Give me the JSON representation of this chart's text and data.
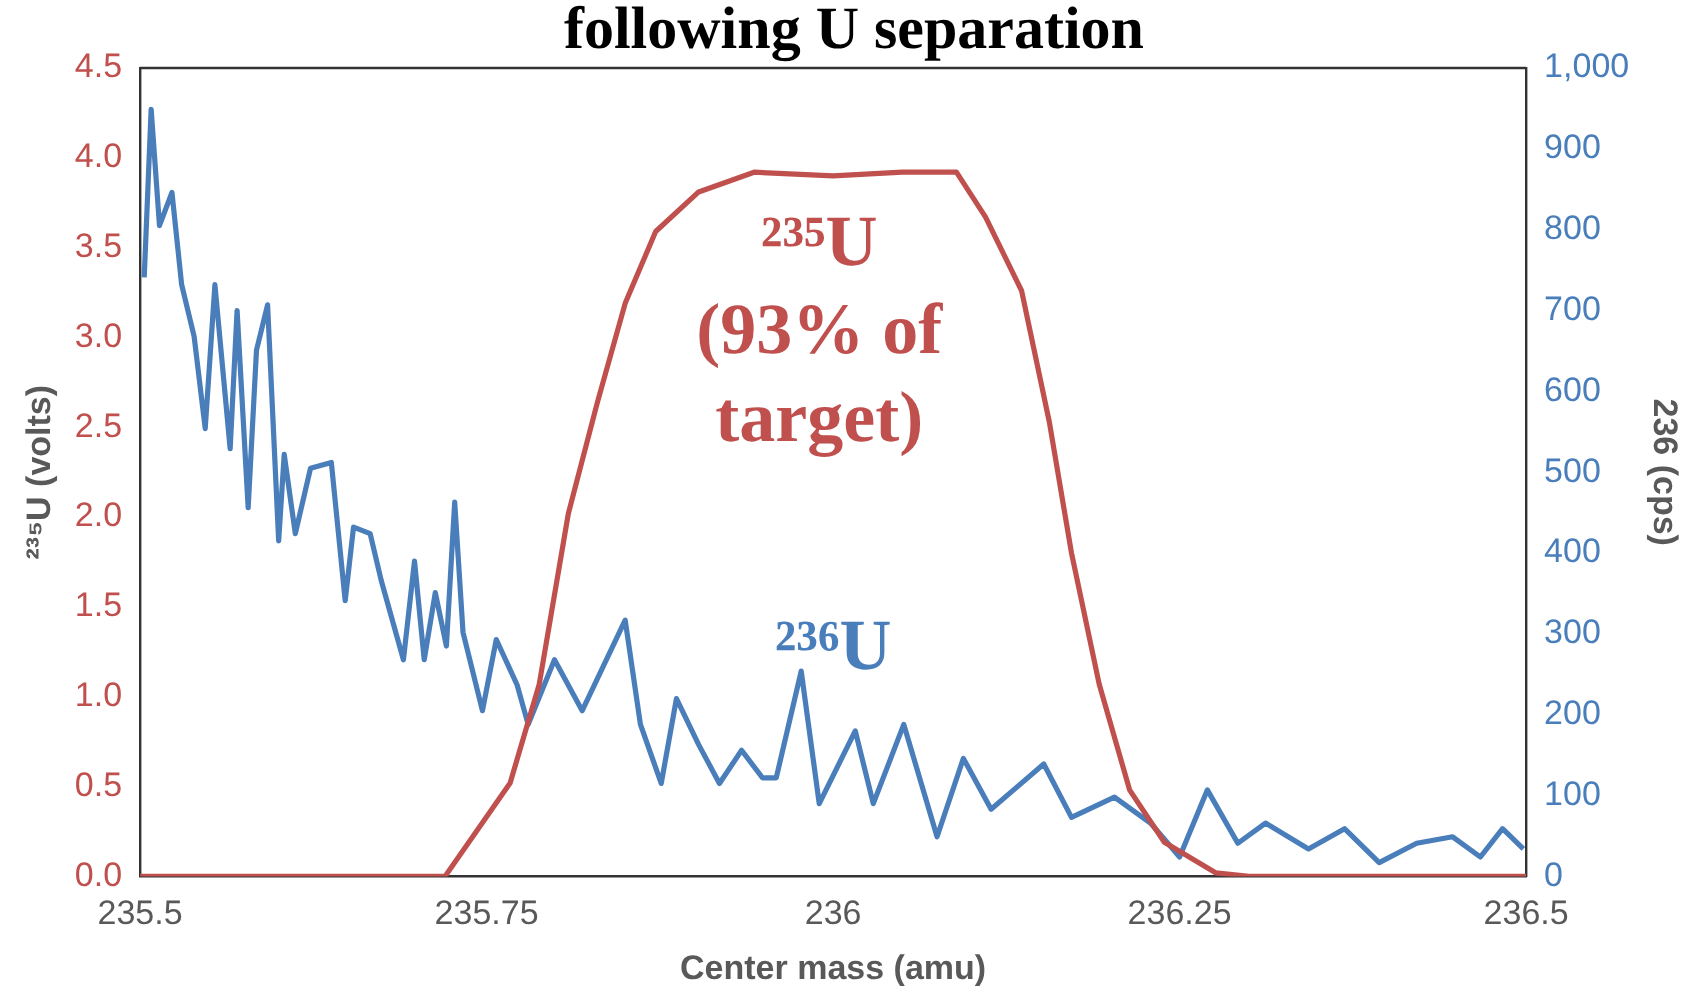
{
  "chart_data": {
    "type": "line",
    "title": "following U separation",
    "xlabel": "Center mass (amu)",
    "ylabel": "²³⁵U (volts)",
    "y2label": "236 (cps)",
    "xlim": [
      235.5,
      236.5
    ],
    "xticks": [
      235.5,
      235.75,
      236,
      236.25,
      236.5
    ],
    "ylim": [
      0,
      4.5
    ],
    "yticks": [
      {
        "value": 0,
        "label": "0.0"
      },
      {
        "value": 0.5,
        "label": "0.5"
      },
      {
        "value": 1,
        "label": "1.0"
      },
      {
        "value": 1.5,
        "label": "1.5"
      },
      {
        "value": 2,
        "label": "2.0"
      },
      {
        "value": 2.5,
        "label": "2.5"
      },
      {
        "value": 3,
        "label": "3.0"
      },
      {
        "value": 3.5,
        "label": "3.5"
      },
      {
        "value": 4,
        "label": "4.0"
      },
      {
        "value": 4.5,
        "label": "4.5"
      }
    ],
    "y2lim": [
      0,
      1000
    ],
    "y2ticks": [
      0,
      100,
      200,
      300,
      400,
      500,
      600,
      700,
      800,
      900,
      {
        "value": 1000,
        "label": "1,000"
      }
    ],
    "grid": false,
    "legend": false,
    "series": [
      {
        "name": "²³⁵U (93% of target)",
        "color": "#c0504d",
        "x": [
          235.5,
          235.72,
          235.767,
          235.788,
          235.809,
          235.83,
          235.85,
          235.872,
          235.903,
          235.943,
          236.0,
          236.05,
          236.089,
          236.11,
          236.136,
          236.156,
          236.172,
          236.192,
          236.214,
          236.239,
          236.276,
          236.3,
          236.5
        ],
        "values": [
          0,
          0,
          0.52,
          1.07,
          2.02,
          2.64,
          3.19,
          3.59,
          3.81,
          3.92,
          3.9,
          3.92,
          3.92,
          3.67,
          3.26,
          2.53,
          1.8,
          1.07,
          0.48,
          0.19,
          0.02,
          0,
          0
        ]
      },
      {
        "name": "²³⁶U",
        "color": "#4a7ebb",
        "axis": "y2",
        "x": [
          235.503,
          235.508,
          235.514,
          235.523,
          235.53,
          235.539,
          235.547,
          235.554,
          235.565,
          235.57,
          235.578,
          235.584,
          235.592,
          235.6,
          235.604,
          235.612,
          235.623,
          235.638,
          235.648,
          235.654,
          235.666,
          235.674,
          235.69,
          235.698,
          235.705,
          235.713,
          235.721,
          235.727,
          235.733,
          235.747,
          235.757,
          235.772,
          235.78,
          235.799,
          235.819,
          235.85,
          235.861,
          235.876,
          235.887,
          235.903,
          235.918,
          235.934,
          235.949,
          235.959,
          235.977,
          235.99,
          236.016,
          236.029,
          236.051,
          236.075,
          236.094,
          236.114,
          236.152,
          236.172,
          236.203,
          236.229,
          236.25,
          236.27,
          236.292,
          236.312,
          236.343,
          236.369,
          236.394,
          236.421,
          236.447,
          236.467,
          236.483,
          236.498
        ],
        "values": [
          741,
          949,
          805,
          846,
          732,
          668,
          554,
          732,
          529,
          700,
          456,
          651,
          707,
          415,
          522,
          424,
          505,
          512,
          341,
          432,
          424,
          366,
          268,
          390,
          268,
          351,
          285,
          463,
          302,
          205,
          293,
          237,
          188,
          268,
          205,
          317,
          188,
          115,
          220,
          163,
          115,
          156,
          122,
          122,
          254,
          90,
          180,
          90,
          188,
          49,
          146,
          83,
          139,
          73,
          98,
          66,
          24,
          107,
          41,
          66,
          34,
          59,
          17,
          41,
          49,
          24,
          59,
          34
        ]
      }
    ]
  }
}
